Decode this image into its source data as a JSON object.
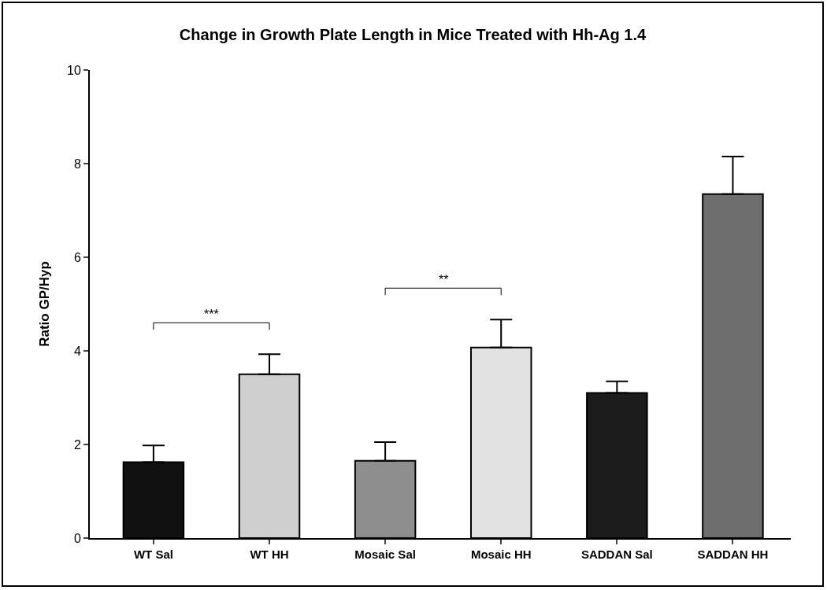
{
  "chart_data": {
    "type": "bar",
    "title": "Change in Growth Plate Length in Mice Treated with Hh-Ag 1.4",
    "ylabel": "Ratio GP/Hyp",
    "categories": [
      "WT Sal",
      "WT HH",
      "Mosaic Sal",
      "Mosaic HH",
      "SADDAN Sal",
      "SADDAN HH"
    ],
    "values": [
      1.62,
      3.5,
      1.65,
      4.07,
      3.1,
      7.35
    ],
    "colors": [
      "#111111",
      "#cfcfcf",
      "#8e8e8e",
      "#e2e2e2",
      "#1c1c1c",
      "#6e6e6e"
    ],
    "errors": [
      [
        1.62,
        1.98
      ],
      [
        3.5,
        3.93
      ],
      [
        1.65,
        2.05
      ],
      [
        4.07,
        4.67
      ],
      [
        3.1,
        3.35
      ],
      [
        7.35,
        8.15
      ]
    ],
    "ylim": [
      0,
      10
    ],
    "yticks": [
      0,
      2,
      4,
      6,
      8,
      10
    ],
    "grid": false,
    "annotations": [
      "***",
      "**"
    ]
  }
}
